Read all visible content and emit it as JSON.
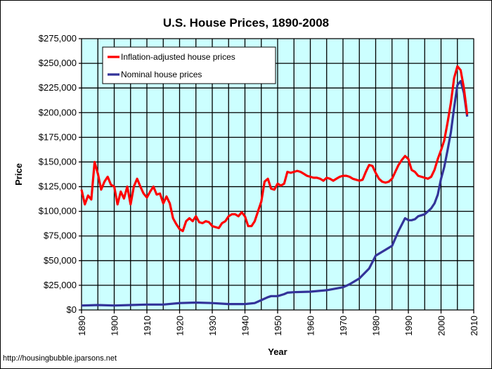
{
  "chart_data": {
    "type": "line",
    "title": "U.S. House Prices, 1890-2008",
    "xlabel": "Year",
    "ylabel": "Price",
    "xlim": [
      1890,
      2010
    ],
    "ylim": [
      0,
      275000
    ],
    "xticks": [
      1890,
      1900,
      1910,
      1920,
      1930,
      1940,
      1950,
      1960,
      1970,
      1980,
      1990,
      2000,
      2010
    ],
    "yticks": [
      "$0",
      "$25,000",
      "$50,000",
      "$75,000",
      "$100,000",
      "$125,000",
      "$150,000",
      "$175,000",
      "$200,000",
      "$225,000",
      "$250,000",
      "$275,000"
    ],
    "grid": true,
    "legend_position": "top-left",
    "plot_background": "#ccffff",
    "series": [
      {
        "name": "Inflation-adjusted house prices",
        "color": "#ff0000",
        "x": [
          1890,
          1891,
          1892,
          1893,
          1894,
          1895,
          1896,
          1897,
          1898,
          1899,
          1900,
          1901,
          1902,
          1903,
          1904,
          1905,
          1906,
          1907,
          1908,
          1909,
          1910,
          1911,
          1912,
          1913,
          1914,
          1915,
          1916,
          1917,
          1918,
          1919,
          1920,
          1921,
          1922,
          1923,
          1924,
          1925,
          1926,
          1927,
          1928,
          1929,
          1930,
          1931,
          1932,
          1933,
          1934,
          1935,
          1936,
          1937,
          1938,
          1939,
          1940,
          1941,
          1942,
          1943,
          1944,
          1945,
          1946,
          1947,
          1948,
          1949,
          1950,
          1951,
          1952,
          1953,
          1954,
          1955,
          1956,
          1957,
          1958,
          1959,
          1960,
          1961,
          1962,
          1963,
          1964,
          1965,
          1966,
          1967,
          1968,
          1969,
          1970,
          1971,
          1972,
          1973,
          1974,
          1975,
          1976,
          1977,
          1978,
          1979,
          1980,
          1981,
          1982,
          1983,
          1984,
          1985,
          1986,
          1987,
          1988,
          1989,
          1990,
          1991,
          1992,
          1993,
          1994,
          1995,
          1996,
          1997,
          1998,
          1999,
          2000,
          2001,
          2002,
          2003,
          2004,
          2005,
          2006,
          2007,
          2008
        ],
        "values": [
          122000,
          107000,
          116000,
          112000,
          150000,
          138000,
          122000,
          130000,
          135000,
          127000,
          125000,
          107000,
          120000,
          113000,
          125000,
          107000,
          125000,
          133000,
          125000,
          118000,
          114000,
          120000,
          125000,
          117000,
          118000,
          108000,
          115000,
          108000,
          93000,
          87000,
          82000,
          80000,
          90000,
          93000,
          90000,
          95000,
          89000,
          88000,
          90000,
          89000,
          85000,
          84000,
          83000,
          88000,
          90000,
          95000,
          97000,
          97000,
          95000,
          99000,
          95000,
          85000,
          85000,
          90000,
          100000,
          110000,
          130000,
          133000,
          123000,
          122000,
          128000,
          126000,
          128000,
          140000,
          139000,
          140000,
          141000,
          140000,
          138000,
          136000,
          135000,
          134000,
          134000,
          133000,
          131000,
          134000,
          133000,
          131000,
          133000,
          135000,
          136000,
          136000,
          135000,
          133000,
          132000,
          131000,
          132000,
          140000,
          147000,
          146000,
          139000,
          133000,
          130000,
          129000,
          130000,
          133000,
          140000,
          147000,
          152000,
          156000,
          153000,
          142000,
          140000,
          136000,
          135000,
          134000,
          133000,
          135000,
          142000,
          153000,
          162000,
          172000,
          190000,
          210000,
          235000,
          247000,
          243000,
          225000,
          198000
        ]
      },
      {
        "name": "Nominal house prices",
        "color": "#333399",
        "x": [
          1890,
          1895,
          1900,
          1905,
          1910,
          1915,
          1920,
          1925,
          1930,
          1935,
          1940,
          1943,
          1945,
          1947,
          1948,
          1950,
          1952,
          1953,
          1955,
          1960,
          1965,
          1970,
          1972,
          1975,
          1978,
          1980,
          1983,
          1985,
          1987,
          1989,
          1990,
          1991,
          1992,
          1993,
          1995,
          1997,
          1998,
          1999,
          2000,
          2001,
          2002,
          2003,
          2004,
          2005,
          2006,
          2007,
          2008
        ],
        "values": [
          4500,
          5000,
          4500,
          5000,
          5500,
          5500,
          7000,
          7500,
          7000,
          6000,
          6000,
          7000,
          10000,
          13000,
          14000,
          14000,
          16000,
          17500,
          18000,
          18500,
          20000,
          23000,
          26000,
          32000,
          42000,
          55000,
          61000,
          65000,
          80000,
          93000,
          91000,
          91000,
          92000,
          95000,
          97000,
          103000,
          108000,
          117000,
          133000,
          145000,
          162000,
          180000,
          205000,
          228000,
          232000,
          220000,
          196000
        ]
      }
    ]
  },
  "footer": "http://housingbubble.jparsons.net"
}
